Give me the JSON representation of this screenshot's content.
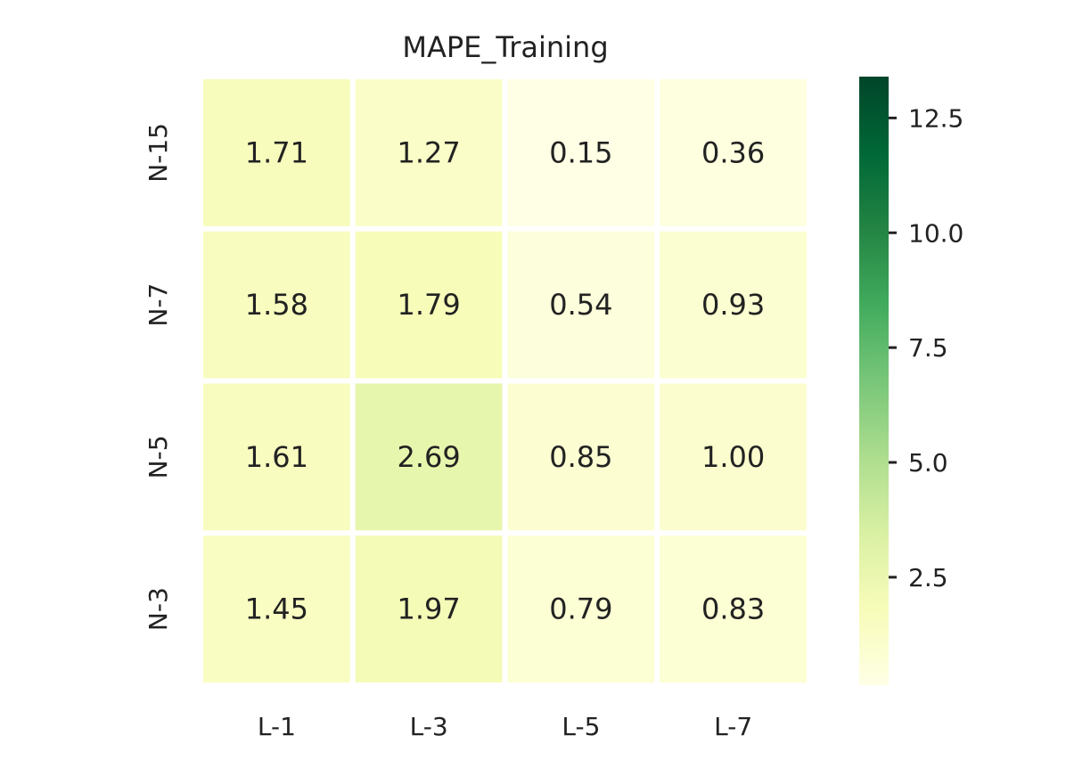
{
  "chart_data": {
    "type": "heatmap",
    "title": "MAPE_Training",
    "x_categories": [
      "L-1",
      "L-3",
      "L-5",
      "L-7"
    ],
    "y_categories": [
      "N-15",
      "N-7",
      "N-5",
      "N-3"
    ],
    "values": [
      [
        1.71,
        1.27,
        0.15,
        0.36
      ],
      [
        1.58,
        1.79,
        0.54,
        0.93
      ],
      [
        1.61,
        2.69,
        0.85,
        1.0
      ],
      [
        1.45,
        1.97,
        0.79,
        0.83
      ]
    ],
    "value_labels": [
      [
        "1.71",
        "1.27",
        "0.15",
        "0.36"
      ],
      [
        "1.58",
        "1.79",
        "0.54",
        "0.93"
      ],
      [
        "1.61",
        "2.69",
        "0.85",
        "1.00"
      ],
      [
        "1.45",
        "1.97",
        "0.79",
        "0.83"
      ]
    ],
    "colorbar": {
      "colormap": "YlGn",
      "range": [
        0.15,
        13.4
      ],
      "ticks": [
        2.5,
        5.0,
        7.5,
        10.0,
        12.5
      ],
      "tick_labels": [
        "2.5",
        "5.0",
        "7.5",
        "10.0",
        "12.5"
      ]
    }
  }
}
